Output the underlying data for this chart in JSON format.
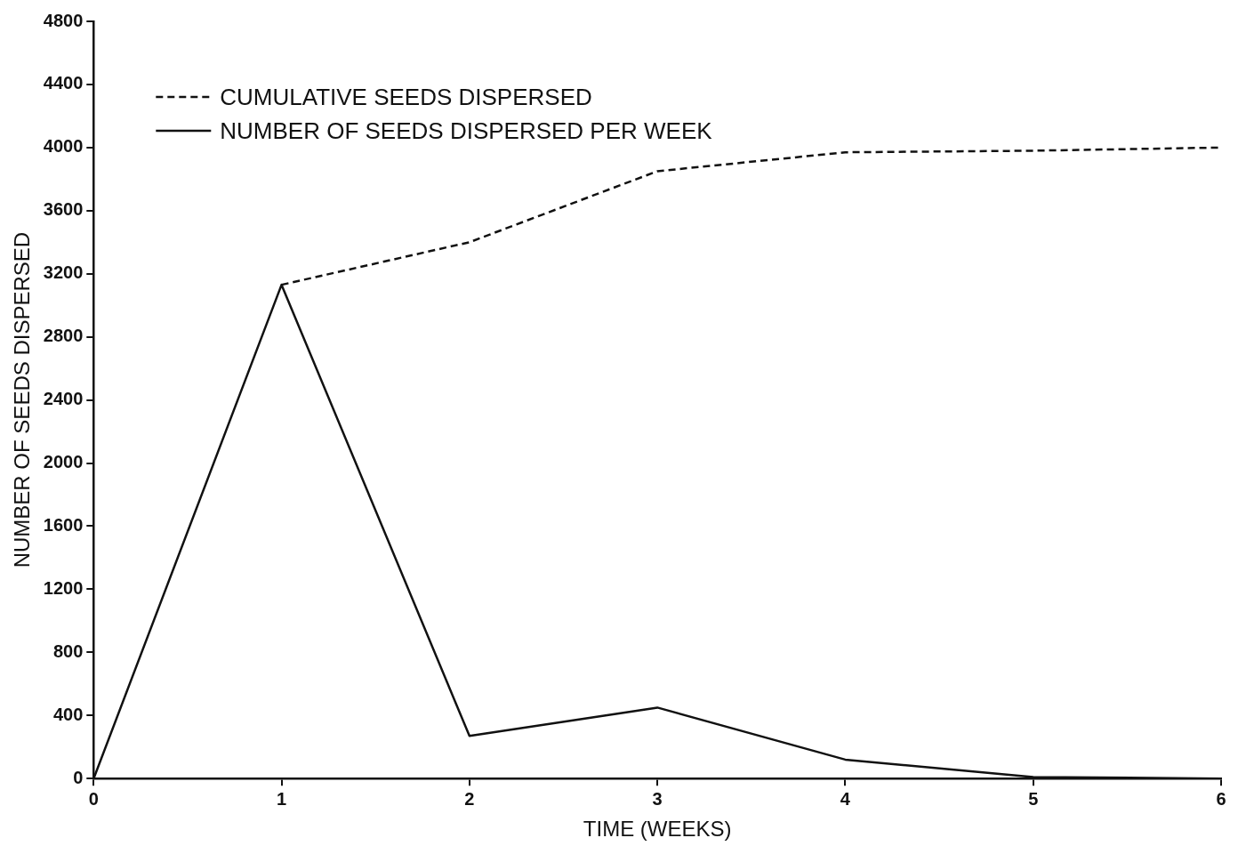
{
  "chart_data": {
    "type": "line",
    "xlabel": "TIME (WEEKS)",
    "ylabel": "NUMBER OF SEEDS DISPERSED",
    "x": [
      0,
      1,
      2,
      3,
      4,
      5,
      6
    ],
    "series": [
      {
        "name": "CUMULATIVE SEEDS DISPERSED",
        "color": "#111111",
        "line_style": "dashed",
        "values": [
          null,
          3130,
          3400,
          3850,
          3970,
          3980,
          4000
        ]
      },
      {
        "name": "NUMBER OF SEEDS DISPERSED PER WEEK",
        "color": "#111111",
        "line_style": "solid",
        "values": [
          0,
          3130,
          270,
          450,
          120,
          10,
          0
        ]
      }
    ],
    "xlim": [
      0,
      6
    ],
    "xticks": [
      0,
      1,
      2,
      3,
      4,
      5,
      6
    ],
    "ylim": [
      0,
      4800
    ],
    "yticks": [
      0,
      400,
      800,
      1200,
      1600,
      2000,
      2400,
      2800,
      3200,
      3600,
      4000,
      4400,
      4800
    ],
    "grid": false,
    "legend": "top left",
    "marker": "none"
  }
}
